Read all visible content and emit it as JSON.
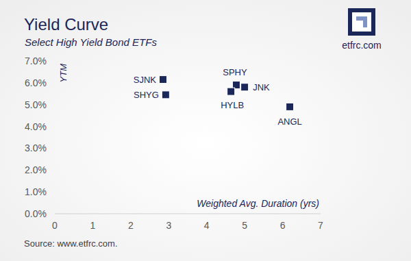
{
  "chart_data": {
    "type": "scatter",
    "title": "Yield Curve",
    "subtitle": "Select High Yield Bond ETFs",
    "x_label": "Weighted Avg. Duration (yrs)",
    "y_label": "YTM",
    "labels": [
      "SJNK",
      "SHYG",
      "SPHY",
      "JNK",
      "HYLB",
      "ANGL"
    ],
    "x": [
      2.85,
      2.92,
      4.78,
      5.0,
      4.64,
      6.19
    ],
    "values": [
      6.15,
      5.45,
      5.9,
      5.8,
      5.6,
      4.9
    ],
    "color": "#1b2659",
    "marker": "square",
    "xlim": [
      0,
      7
    ],
    "xticks": [
      0,
      1,
      2,
      3,
      4,
      5,
      6,
      7
    ],
    "ylim": [
      0,
      7
    ],
    "yticks": [
      {
        "value": 0,
        "label": "0.0%"
      },
      {
        "value": 1,
        "label": "1.0%"
      },
      {
        "value": 2,
        "label": "2.0%"
      },
      {
        "value": 3,
        "label": "3.0%"
      },
      {
        "value": 4,
        "label": "4.0%"
      },
      {
        "value": 5,
        "label": "5.0%"
      },
      {
        "value": 6,
        "label": "6.0%"
      },
      {
        "value": 7,
        "label": "7.0%"
      }
    ],
    "grid": false,
    "logo_text": "etfrc.com",
    "source": "Source: www.etfrc.com."
  }
}
